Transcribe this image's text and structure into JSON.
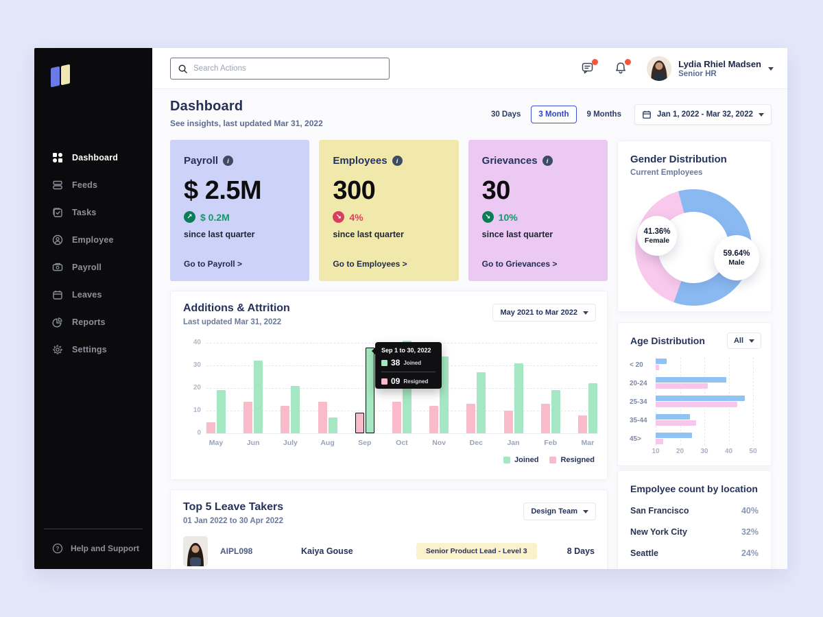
{
  "colors": {
    "accent_blue": "#2f45c5",
    "green_text": "#0f9a68",
    "green_circle": "#0c7d57",
    "red_text": "#df3e5e",
    "red_circle": "#d6405c",
    "bar_green": "#a5e7c2",
    "bar_pink": "#f9bac9",
    "donut_blue": "#8ab9f2",
    "donut_pink": "#f8c9ec",
    "age_blue": "#90c2f4",
    "age_pink": "#f8c6ec",
    "card_purple": "#cdd3f8",
    "card_yellow": "#f1e9ab",
    "card_pink": "#ecc9f2"
  },
  "sidebar": {
    "items": [
      {
        "id": "dashboard",
        "label": "Dashboard",
        "icon": "grid-icon",
        "active": true
      },
      {
        "id": "feeds",
        "label": "Feeds",
        "icon": "feeds-icon",
        "active": false
      },
      {
        "id": "tasks",
        "label": "Tasks",
        "icon": "tasks-icon",
        "active": false
      },
      {
        "id": "employee",
        "label": "Employee",
        "icon": "employee-icon",
        "active": false
      },
      {
        "id": "payroll",
        "label": "Payroll",
        "icon": "payroll-icon",
        "active": false
      },
      {
        "id": "leaves",
        "label": "Leaves",
        "icon": "calendar-icon",
        "active": false
      },
      {
        "id": "reports",
        "label": "Reports",
        "icon": "reports-icon",
        "active": false
      },
      {
        "id": "settings",
        "label": "Settings",
        "icon": "gear-icon",
        "active": false
      }
    ],
    "help_label": "Help and Support"
  },
  "topbar": {
    "search_placeholder": "Search Actions",
    "user_name": "Lydia Rhiel Madsen",
    "user_role": "Senior HR"
  },
  "header": {
    "title": "Dashboard",
    "subtitle": "See insights, last updated Mar 31, 2022",
    "range_tabs": [
      "30 Days",
      "3 Month",
      "9 Months"
    ],
    "active_tab": "3 Month",
    "date_range": "Jan 1, 2022 - Mar 32, 2022"
  },
  "stat_cards": [
    {
      "title": "Payroll",
      "value": "$ 2.5M",
      "delta": "$ 0.2M",
      "delta_dir": "up",
      "trend": "positive",
      "caption": "since last quarter",
      "link": "Go to Payroll >"
    },
    {
      "title": "Employees",
      "value": "300",
      "delta": "4%",
      "delta_dir": "down",
      "trend": "negative",
      "caption": "since last quarter",
      "link": "Go to Employees >"
    },
    {
      "title": "Grievances",
      "value": "30",
      "delta": "10%",
      "delta_dir": "down",
      "trend": "positive",
      "caption": "since last quarter",
      "link": "Go to Grievances >"
    }
  ],
  "gender": {
    "title": "Gender Distribution",
    "subtitle": "Current Employees",
    "female_pct": "41.36%",
    "female_label": "Female",
    "male_pct": "59.64%",
    "male_label": "Male"
  },
  "additions": {
    "title": "Additions & Attrition",
    "subtitle": "Last updated Mar 31, 2022",
    "dropdown": "May 2021 to Mar 2022",
    "tooltip": {
      "title": "Sep 1 to 30, 2022",
      "joined_value": "38",
      "joined_label": "Joined",
      "resigned_value": "09",
      "resigned_label": "Resigned"
    }
  },
  "age": {
    "title": "Age Distribution",
    "dropdown": "All"
  },
  "leave": {
    "title": "Top 5 Leave Takers",
    "subtitle": "01 Jan 2022 to 30 Apr 2022",
    "dropdown": "Design Team",
    "rows": [
      {
        "emp_id": "AIPL098",
        "name": "Kaiya Gouse",
        "role": "Senior Product Lead -  Level 3",
        "days": "8 Days"
      }
    ]
  },
  "locations": {
    "title": "Empolyee count by location",
    "rows": [
      {
        "city": "San Francisco",
        "pct": "40%"
      },
      {
        "city": "New York City",
        "pct": "32%"
      },
      {
        "city": "Seattle",
        "pct": "24%"
      }
    ]
  },
  "chart_data": [
    {
      "id": "additions-attrition",
      "type": "bar",
      "title": "Additions & Attrition",
      "categories": [
        "May",
        "Jun",
        "July",
        "Aug",
        "Sep",
        "Oct",
        "Nov",
        "Dec",
        "Jan",
        "Feb",
        "Mar"
      ],
      "series": [
        {
          "name": "Resigned",
          "color": "#f9bac9",
          "values": [
            5,
            14,
            12,
            14,
            9,
            14,
            12,
            13,
            10,
            13,
            8
          ]
        },
        {
          "name": "Joined",
          "color": "#a5e7c2",
          "values": [
            19,
            32,
            21,
            7,
            38,
            41,
            34,
            27,
            31,
            19,
            22
          ]
        }
      ],
      "ylim": [
        0,
        40
      ],
      "yticks": [
        0,
        10,
        20,
        30,
        40
      ],
      "highlight_category": "Sep",
      "legend": [
        "Joined",
        "Resigned"
      ],
      "legend_position": "bottom-right",
      "grid": "dashed-horizontal"
    },
    {
      "id": "gender-donut",
      "type": "pie",
      "title": "Gender Distribution",
      "labels": [
        "Male",
        "Female"
      ],
      "values": [
        59.64,
        41.36
      ],
      "colors": [
        "#8ab9f2",
        "#f8c9ec"
      ]
    },
    {
      "id": "age-distribution",
      "type": "bar",
      "orientation": "horizontal",
      "title": "Age Distribution",
      "categories": [
        "< 20",
        "20-24",
        "25-34",
        "35-44",
        "45>"
      ],
      "series": [
        {
          "name": "Male",
          "color": "#90c2f4",
          "values": [
            14.5,
            39,
            46.5,
            24,
            25
          ]
        },
        {
          "name": "Female",
          "color": "#f8c6ec",
          "values": [
            11.5,
            31.5,
            43.5,
            26.5,
            13
          ]
        }
      ],
      "xticks": [
        10,
        20,
        30,
        40,
        50
      ],
      "axis_start": 10,
      "grid": "dashed-vertical"
    }
  ]
}
